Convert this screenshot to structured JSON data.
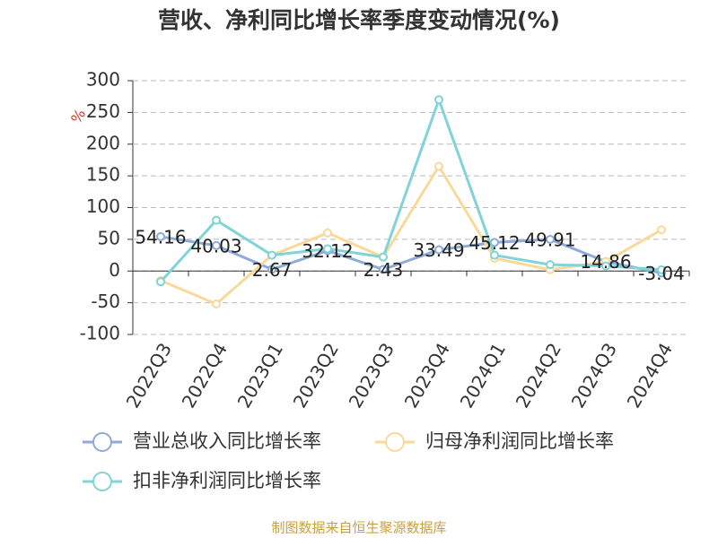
{
  "chart_data": {
    "type": "line",
    "title": "营收、净利同比增长率季度变动情况(%)",
    "y_axis_label": "%",
    "categories": [
      "2022Q3",
      "2022Q4",
      "2023Q1",
      "2023Q2",
      "2023Q3",
      "2023Q4",
      "2024Q1",
      "2024Q2",
      "2024Q3",
      "2024Q4"
    ],
    "series": [
      {
        "name": "营业总收入同比增长率",
        "color": "#8eaad8",
        "show_labels": true,
        "values": [
          54.16,
          40.03,
          2.67,
          32.12,
          2.43,
          33.49,
          45.12,
          49.91,
          14.86,
          -3.04
        ]
      },
      {
        "name": "归母净利润同比增长率",
        "color": "#f9d99a",
        "show_labels": false,
        "values": [
          -15,
          -52,
          25,
          60,
          22,
          165,
          20,
          2,
          15,
          65
        ]
      },
      {
        "name": "扣非净利润同比增长率",
        "color": "#80d3d6",
        "show_labels": false,
        "values": [
          -17,
          80,
          25,
          35,
          22,
          270,
          25,
          10,
          8,
          2
        ]
      }
    ],
    "ylim": [
      -100,
      300
    ],
    "yticks": [
      -100,
      -50,
      0,
      50,
      100,
      150,
      200,
      250,
      300
    ],
    "grid": true,
    "source": "制图数据来自恒生聚源数据库"
  }
}
